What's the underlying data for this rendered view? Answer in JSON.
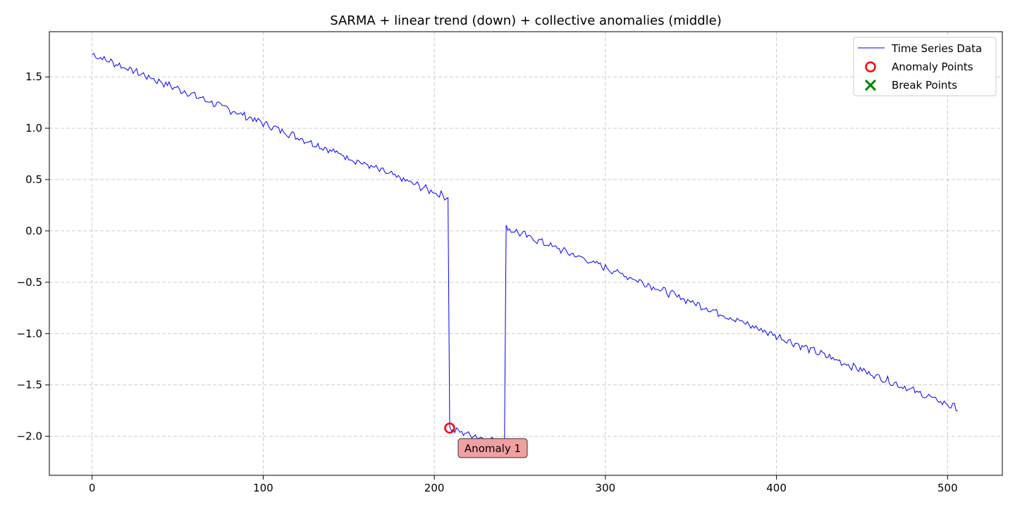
{
  "chart_data": {
    "type": "line",
    "title": "SARMA + linear trend (down) + collective anomalies (middle)",
    "xlabel": "",
    "ylabel": "",
    "xlim": [
      -25,
      532
    ],
    "ylim": [
      -2.38,
      1.94
    ],
    "xticks": [
      0,
      100,
      200,
      300,
      400,
      500
    ],
    "yticks": [
      -2.0,
      -1.5,
      -1.0,
      -0.5,
      0.0,
      0.5,
      1.0,
      1.5
    ],
    "xtick_labels": [
      "0",
      "100",
      "200",
      "300",
      "400",
      "500"
    ],
    "ytick_labels": [
      "−2.0",
      "−1.5",
      "−1.0",
      "−0.5",
      "0.0",
      "0.5",
      "1.0",
      "1.5"
    ],
    "grid": true,
    "legend_position": "top-right",
    "series": [
      {
        "name": "Time Series Data",
        "color": "#0000ff",
        "x_start": 0,
        "x_end": 506,
        "segments": [
          {
            "x0": 0,
            "x1": 207,
            "y0": 1.72,
            "y1": 0.33
          },
          {
            "x0": 208,
            "x1": 208,
            "y0": 0.34,
            "y1": 0.34
          },
          {
            "x0": 209,
            "x1": 241,
            "y0": -1.93,
            "y1": -2.07
          },
          {
            "x0": 242,
            "x1": 506,
            "y0": 0.03,
            "y1": -1.73
          }
        ],
        "noise_amplitude": 0.03
      },
      {
        "name": "Anomaly Points",
        "marker": "circle",
        "color": "#ff0000",
        "points": [
          {
            "x": 209,
            "y": -1.92
          }
        ]
      },
      {
        "name": "Break Points",
        "marker": "x",
        "color": "#008000",
        "points": []
      }
    ],
    "annotations": [
      {
        "text": "Anomaly 1",
        "x": 209,
        "y": -1.92,
        "box_color": "#f0a0a0"
      }
    ]
  }
}
